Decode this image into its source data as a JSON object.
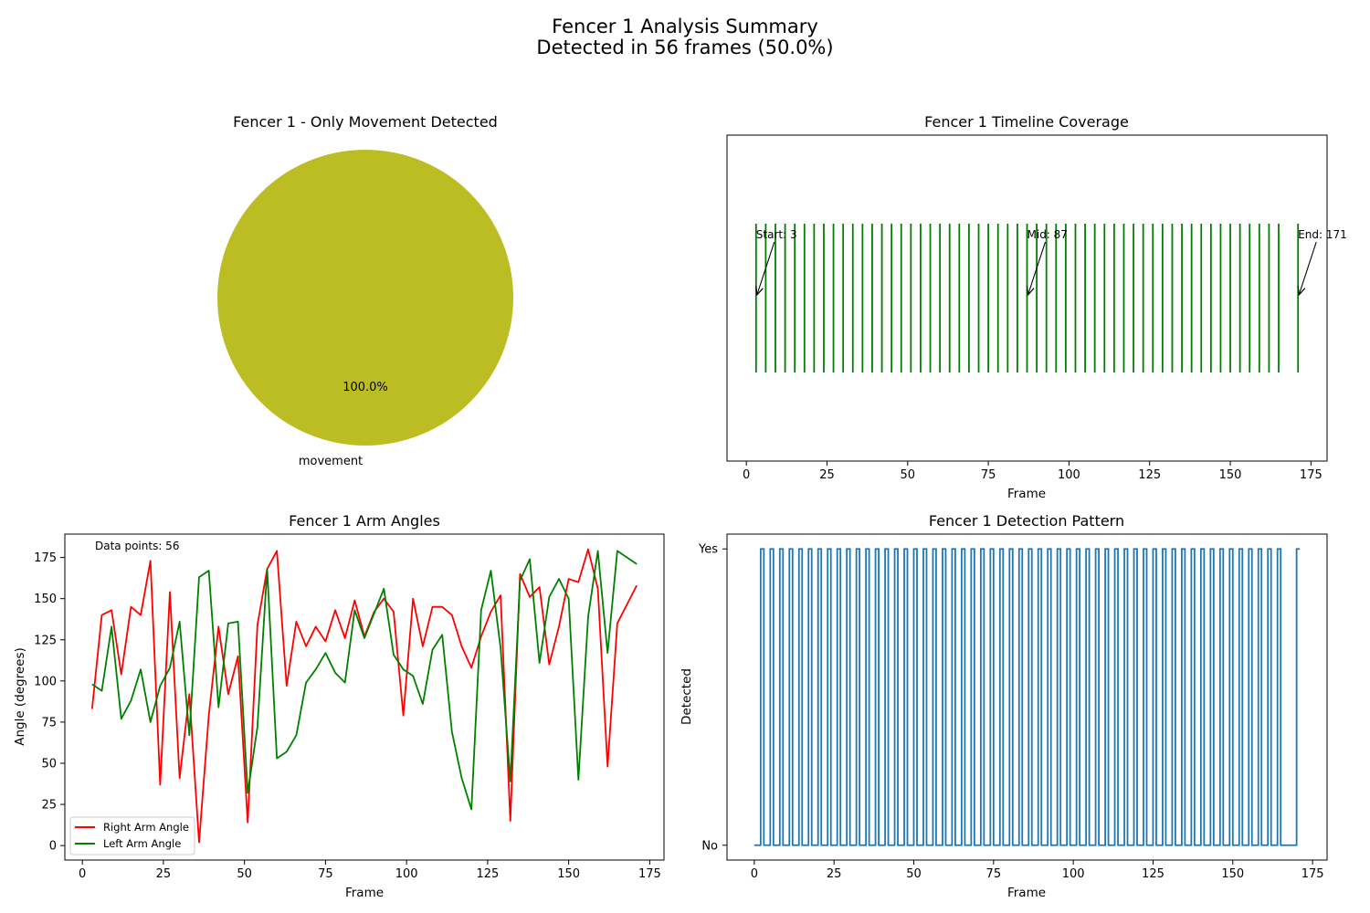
{
  "figure": {
    "title_line1": "Fencer 1 Analysis Summary",
    "title_line2": "Detected in 56 frames (50.0%)"
  },
  "chart_data": [
    {
      "type": "pie",
      "title": "Fencer 1 - Only Movement Detected",
      "labels": [
        "movement"
      ],
      "values": [
        100
      ],
      "pct_labels": [
        "100.0%"
      ],
      "colors": [
        "#bcbd22"
      ]
    },
    {
      "type": "eventplot",
      "title": "Fencer 1 Timeline Coverage",
      "xlabel": "Frame",
      "xlim": [
        -6,
        180
      ],
      "xticks": [
        0,
        25,
        50,
        75,
        100,
        125,
        150,
        175
      ],
      "events": [
        3,
        6,
        9,
        12,
        15,
        18,
        21,
        24,
        27,
        30,
        33,
        36,
        39,
        42,
        45,
        48,
        51,
        54,
        57,
        60,
        63,
        66,
        69,
        72,
        75,
        78,
        81,
        84,
        87,
        90,
        93,
        96,
        99,
        102,
        105,
        108,
        111,
        114,
        117,
        120,
        123,
        126,
        129,
        132,
        135,
        138,
        141,
        144,
        147,
        150,
        153,
        156,
        159,
        162,
        165,
        171
      ],
      "color": "#008000",
      "annotations": [
        {
          "text": "Start: 3",
          "frame": 3
        },
        {
          "text": "Mid: 87",
          "frame": 87
        },
        {
          "text": "End: 171",
          "frame": 171
        }
      ]
    },
    {
      "type": "line",
      "title": "Fencer 1 Arm Angles",
      "xlabel": "Frame",
      "ylabel": "Angle (degrees)",
      "xlim": [
        -5.4,
        179.4
      ],
      "ylim": [
        -8.8,
        189.2
      ],
      "xticks": [
        0,
        25,
        50,
        75,
        100,
        125,
        150,
        175
      ],
      "yticks": [
        0,
        25,
        50,
        75,
        100,
        125,
        150,
        175
      ],
      "annotation": "Data points: 56",
      "legend_position": "lower-left",
      "x": [
        3,
        6,
        9,
        12,
        15,
        18,
        21,
        24,
        27,
        30,
        33,
        36,
        39,
        42,
        45,
        48,
        51,
        54,
        57,
        60,
        63,
        66,
        69,
        72,
        75,
        78,
        81,
        84,
        87,
        90,
        93,
        96,
        99,
        102,
        105,
        108,
        111,
        114,
        117,
        120,
        123,
        126,
        129,
        132,
        135,
        138,
        141,
        144,
        147,
        150,
        153,
        156,
        159,
        162,
        165,
        171
      ],
      "series": [
        {
          "name": "Right Arm Angle",
          "color": "#ff0000",
          "values": [
            83,
            140,
            143,
            104,
            145,
            140,
            173,
            37,
            154,
            41,
            92,
            2,
            79,
            133,
            92,
            115,
            14,
            134,
            168,
            179,
            97,
            136,
            121,
            133,
            124,
            143,
            126,
            149,
            127,
            142,
            150,
            142,
            79,
            150,
            121,
            145,
            145,
            140,
            121,
            108,
            127,
            142,
            152,
            15,
            165,
            151,
            157,
            110,
            133,
            162,
            160,
            180,
            156,
            48,
            135,
            158
          ]
        },
        {
          "name": "Left Arm Angle",
          "color": "#008000",
          "values": [
            98,
            94,
            133,
            77,
            88,
            107,
            75,
            97,
            108,
            136,
            67,
            163,
            167,
            84,
            135,
            136,
            32,
            72,
            168,
            53,
            57,
            67,
            99,
            107,
            117,
            105,
            99,
            143,
            126,
            141,
            156,
            116,
            107,
            103,
            86,
            119,
            128,
            69,
            41,
            22,
            143,
            167,
            120,
            39,
            161,
            174,
            111,
            151,
            162,
            150,
            40,
            139,
            179,
            117,
            179,
            171
          ]
        }
      ]
    },
    {
      "type": "step",
      "title": "Fencer 1 Detection Pattern",
      "xlabel": "Frame",
      "ylabel": "Detected",
      "xlim": [
        -8.55,
        179.55
      ],
      "ylim": [
        -0.05,
        1.05
      ],
      "xticks": [
        0,
        25,
        50,
        75,
        100,
        125,
        150,
        175
      ],
      "ytick_labels": [
        "No",
        "Yes"
      ],
      "frame_start": 0,
      "frame_end": 171,
      "detected_frames": [
        3,
        6,
        9,
        12,
        15,
        18,
        21,
        24,
        27,
        30,
        33,
        36,
        39,
        42,
        45,
        48,
        51,
        54,
        57,
        60,
        63,
        66,
        69,
        72,
        75,
        78,
        81,
        84,
        87,
        90,
        93,
        96,
        99,
        102,
        105,
        108,
        111,
        114,
        117,
        120,
        123,
        126,
        129,
        132,
        135,
        138,
        141,
        144,
        147,
        150,
        153,
        156,
        159,
        162,
        165,
        171
      ],
      "color": "#1f77b4"
    }
  ]
}
